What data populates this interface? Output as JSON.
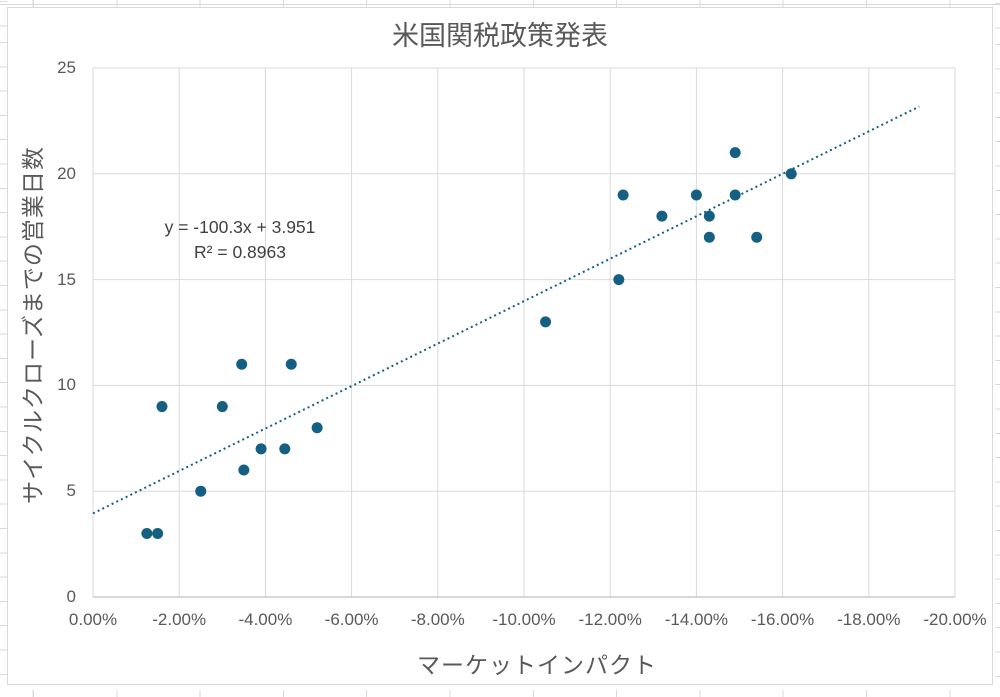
{
  "chart_data": {
    "type": "scatter",
    "title": "米国関税政策発表",
    "xlabel": "マーケットインパクト",
    "ylabel": "サイクルクローズまでの営業日数",
    "x_unit": "percent",
    "xlim": [
      0,
      -20
    ],
    "ylim": [
      0,
      25
    ],
    "grid": true,
    "x_ticks": [
      "0.00%",
      "-2.00%",
      "-4.00%",
      "-6.00%",
      "-8.00%",
      "-10.00%",
      "-12.00%",
      "-14.00%",
      "-16.00%",
      "-18.00%",
      "-20.00%"
    ],
    "x_tick_values": [
      0,
      -2,
      -4,
      -6,
      -8,
      -10,
      -12,
      -14,
      -16,
      -18,
      -20
    ],
    "y_ticks": [
      0,
      5,
      10,
      15,
      20,
      25
    ],
    "points": [
      {
        "x": -1.25,
        "y": 3
      },
      {
        "x": -1.5,
        "y": 3
      },
      {
        "x": -1.6,
        "y": 9
      },
      {
        "x": -2.5,
        "y": 5
      },
      {
        "x": -3.0,
        "y": 9
      },
      {
        "x": -3.45,
        "y": 11
      },
      {
        "x": -3.5,
        "y": 6
      },
      {
        "x": -3.9,
        "y": 7
      },
      {
        "x": -4.45,
        "y": 7
      },
      {
        "x": -4.6,
        "y": 11
      },
      {
        "x": -5.2,
        "y": 8
      },
      {
        "x": -10.5,
        "y": 13
      },
      {
        "x": -12.2,
        "y": 15
      },
      {
        "x": -12.3,
        "y": 19
      },
      {
        "x": -13.2,
        "y": 18
      },
      {
        "x": -14.0,
        "y": 19
      },
      {
        "x": -14.3,
        "y": 18
      },
      {
        "x": -14.3,
        "y": 17
      },
      {
        "x": -14.9,
        "y": 21
      },
      {
        "x": -14.9,
        "y": 19
      },
      {
        "x": -15.4,
        "y": 17
      },
      {
        "x": -16.2,
        "y": 20
      }
    ],
    "trendline": {
      "equation_label": "y = -100.3x + 3.951",
      "r_squared_label": "R² = 0.8963",
      "slope": -100.3,
      "intercept": 3.951,
      "r_squared": 0.8963,
      "style": "dotted",
      "x_draw_range_pct": [
        0,
        -19.17
      ]
    },
    "colors": {
      "series": "#156082",
      "gridline": "#d9d9d9",
      "axis_line": "#bfbfbf",
      "tick_text": "#595959",
      "title_text": "#595959",
      "equation_text": "#404040",
      "chart_border": "#d9d9d9"
    }
  }
}
